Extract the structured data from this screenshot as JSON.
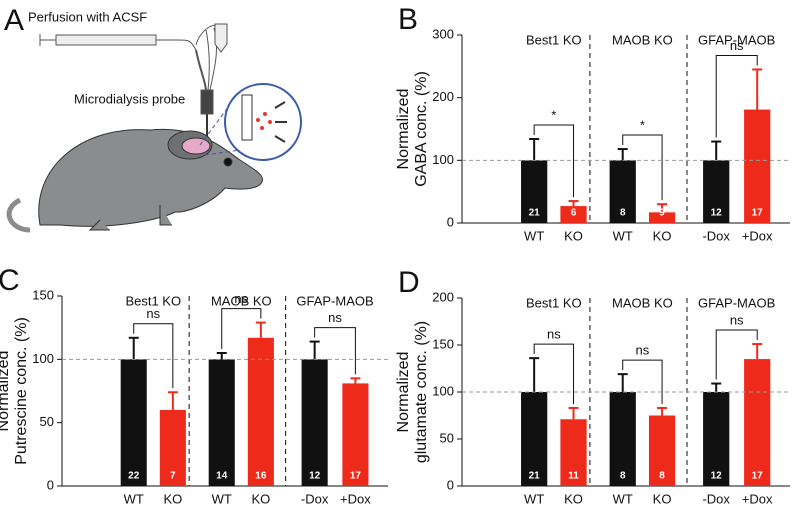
{
  "panel_a": {
    "letter": "A",
    "labels": [
      "Perfusion with ACSF",
      "Microdialysis probe"
    ]
  },
  "chart_data": [
    {
      "type": "bar",
      "panel_label": "B",
      "groups": [
        "Best1 KO",
        "MAOB KO",
        "GFAP-MAOB"
      ],
      "categories": [
        "WT",
        "KO",
        "WT",
        "KO",
        "-Dox",
        "+Dox"
      ],
      "values": [
        100,
        27,
        100,
        17,
        100,
        181
      ],
      "errors": [
        34,
        8,
        18,
        13,
        30,
        64
      ],
      "n_labels": [
        "21",
        "6",
        "8",
        "9",
        "12",
        "17"
      ],
      "significance": [
        "*",
        "*",
        "ns"
      ],
      "bar_colors": [
        "#111111",
        "#ee2a1b",
        "#111111",
        "#ee2a1b",
        "#111111",
        "#ee2a1b"
      ],
      "ylabel": [
        "Normalized",
        "GABA conc. (%)"
      ],
      "ylim": [
        0,
        300
      ],
      "yticks": [
        0,
        100,
        200,
        300
      ],
      "ref_line": 100
    },
    {
      "type": "bar",
      "panel_label": "C",
      "groups": [
        "Best1 KO",
        "MAOB KO",
        "GFAP-MAOB"
      ],
      "categories": [
        "WT",
        "KO",
        "WT",
        "KO",
        "-Dox",
        "+Dox"
      ],
      "values": [
        100,
        60,
        100,
        117,
        100,
        81
      ],
      "errors": [
        17,
        14,
        5,
        12,
        14,
        4
      ],
      "n_labels": [
        "22",
        "7",
        "14",
        "16",
        "12",
        "17"
      ],
      "significance": [
        "ns",
        "ns",
        "ns"
      ],
      "bar_colors": [
        "#111111",
        "#ee2a1b",
        "#111111",
        "#ee2a1b",
        "#111111",
        "#ee2a1b"
      ],
      "ylabel": [
        "Normalized",
        "Putrescine conc. (%)"
      ],
      "ylim": [
        0,
        150
      ],
      "yticks": [
        0,
        50,
        100,
        150
      ],
      "ref_line": 100
    },
    {
      "type": "bar",
      "panel_label": "D",
      "groups": [
        "Best1 KO",
        "MAOB KO",
        "GFAP-MAOB"
      ],
      "categories": [
        "WT",
        "KO",
        "WT",
        "KO",
        "-Dox",
        "+Dox"
      ],
      "values": [
        100,
        71,
        100,
        75,
        100,
        135
      ],
      "errors": [
        36,
        12,
        19,
        8,
        9,
        16
      ],
      "n_labels": [
        "21",
        "11",
        "8",
        "8",
        "12",
        "17"
      ],
      "significance": [
        "ns",
        "ns",
        "ns"
      ],
      "bar_colors": [
        "#111111",
        "#ee2a1b",
        "#111111",
        "#ee2a1b",
        "#111111",
        "#ee2a1b"
      ],
      "ylabel": [
        "Normalized",
        "glutamate conc. (%)"
      ],
      "ylim": [
        0,
        200
      ],
      "yticks": [
        0,
        50,
        100,
        150,
        200
      ],
      "ref_line": 100
    }
  ]
}
